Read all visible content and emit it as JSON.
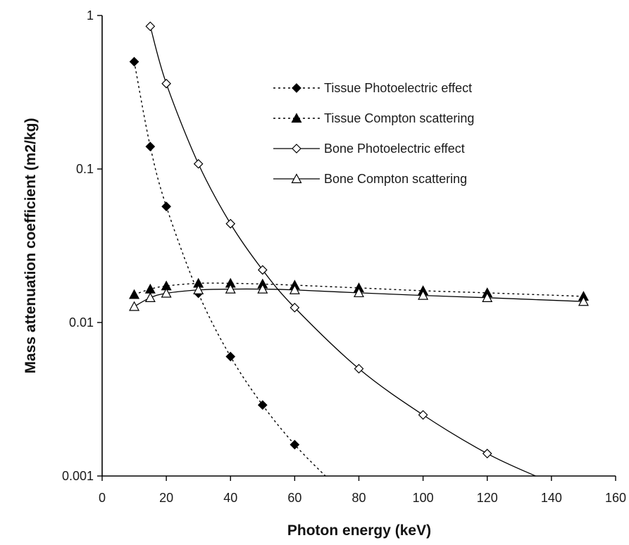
{
  "chart_data": {
    "type": "line",
    "title": "",
    "xlabel": "Photon energy (keV)",
    "ylabel": "Mass attenuation coefficient (m2/kg)",
    "xlim": [
      0,
      160
    ],
    "ylim": [
      0.001,
      1
    ],
    "yscale": "log",
    "xticks": [
      0,
      20,
      40,
      60,
      80,
      100,
      120,
      140,
      160
    ],
    "xtick_labels": [
      "0",
      "20",
      "40",
      "60",
      "80",
      "100",
      "120",
      "140",
      "160"
    ],
    "yticks": [
      0.001,
      0.01,
      0.1,
      1
    ],
    "ytick_labels": [
      "0.001",
      "0.01",
      "0.1",
      "1"
    ],
    "grid": false,
    "legend_position": "top-right",
    "series": [
      {
        "name": "Tissue Photoelectric effect",
        "marker": "diamond-filled",
        "line": "dotted",
        "x": [
          10,
          15,
          20,
          30,
          40,
          50,
          60
        ],
        "y": [
          0.5,
          0.14,
          0.057,
          0.0155,
          0.006,
          0.0029,
          0.0016
        ],
        "curve_x": [
          10,
          15,
          20,
          30,
          40,
          50,
          60,
          70
        ],
        "curve_y": [
          0.5,
          0.14,
          0.057,
          0.0155,
          0.006,
          0.0029,
          0.0016,
          0.00098
        ]
      },
      {
        "name": "Tissue Compton scattering",
        "marker": "triangle-filled",
        "line": "dotted",
        "x": [
          10,
          15,
          20,
          30,
          40,
          50,
          60,
          80,
          100,
          120,
          150
        ],
        "y": [
          0.0152,
          0.0165,
          0.0173,
          0.018,
          0.018,
          0.0178,
          0.0175,
          0.0168,
          0.0161,
          0.0156,
          0.0148
        ]
      },
      {
        "name": "Bone Photoelectric effect",
        "marker": "diamond-open",
        "line": "solid",
        "x": [
          15,
          20,
          30,
          40,
          50,
          60,
          80,
          100,
          120
        ],
        "y": [
          0.85,
          0.36,
          0.108,
          0.044,
          0.022,
          0.0125,
          0.005,
          0.0025,
          0.0014
        ],
        "curve_x": [
          15,
          20,
          30,
          40,
          50,
          60,
          80,
          100,
          120,
          136
        ],
        "curve_y": [
          0.85,
          0.36,
          0.108,
          0.044,
          0.022,
          0.0125,
          0.005,
          0.0025,
          0.0014,
          0.00098
        ]
      },
      {
        "name": "Bone Compton scattering",
        "marker": "triangle-open",
        "line": "solid",
        "x": [
          10,
          15,
          20,
          30,
          40,
          50,
          60,
          80,
          100,
          120,
          150
        ],
        "y": [
          0.0127,
          0.0145,
          0.0155,
          0.0163,
          0.0165,
          0.0165,
          0.0163,
          0.0156,
          0.015,
          0.0145,
          0.0137
        ]
      }
    ]
  }
}
